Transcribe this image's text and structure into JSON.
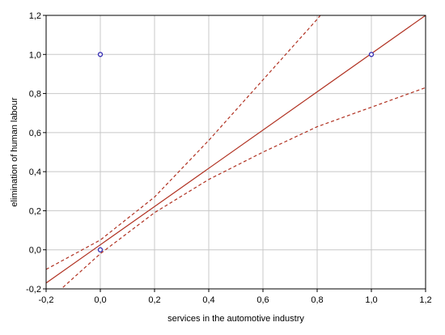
{
  "chart_data": {
    "type": "scatter",
    "title": "",
    "xlabel": "services in the automotive industry",
    "ylabel": "elimination of human labour",
    "xlim": [
      -0.2,
      1.2
    ],
    "ylim": [
      -0.2,
      1.2
    ],
    "x_ticks": [
      "-0,2",
      "0,0",
      "0,2",
      "0,4",
      "0,6",
      "0,8",
      "1,0",
      "1,2"
    ],
    "y_ticks": [
      "-0,2",
      "0,0",
      "0,2",
      "0,4",
      "0,6",
      "0,8",
      "1,0",
      "1,2"
    ],
    "grid": true,
    "legend": "none",
    "points": [
      {
        "x": 0.0,
        "y": 1.0
      },
      {
        "x": 1.0,
        "y": 1.0
      },
      {
        "x": 0.0,
        "y": 0.0
      }
    ],
    "regression_line": {
      "style": "solid",
      "points": [
        [
          -0.2,
          -0.17
        ],
        [
          1.2,
          1.2
        ]
      ]
    },
    "confidence_bands": [
      {
        "name": "upper",
        "style": "dashed",
        "points": [
          [
            -0.2,
            -0.1
          ],
          [
            0.0,
            0.05
          ],
          [
            0.2,
            0.27
          ],
          [
            0.4,
            0.56
          ],
          [
            0.6,
            0.87
          ],
          [
            0.8,
            1.18
          ],
          [
            0.9,
            1.35
          ]
        ]
      },
      {
        "name": "lower",
        "style": "dashed",
        "points": [
          [
            -0.2,
            -0.27
          ],
          [
            0.0,
            -0.02
          ],
          [
            0.2,
            0.19
          ],
          [
            0.4,
            0.36
          ],
          [
            0.6,
            0.5
          ],
          [
            0.8,
            0.63
          ],
          [
            1.0,
            0.73
          ],
          [
            1.2,
            0.83
          ]
        ]
      }
    ],
    "colors": {
      "line": "#b03020",
      "marker": "#3a33b5",
      "grid": "#c8c8c8",
      "axis": "#000000"
    }
  }
}
